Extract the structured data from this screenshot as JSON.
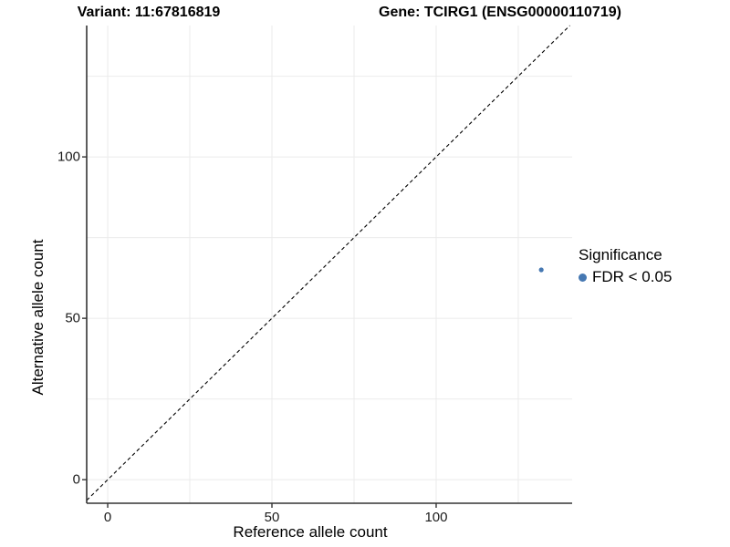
{
  "chart_data": {
    "type": "scatter",
    "title_left": "Variant: 11:67816819",
    "title_right": "Gene: TCIRG1 (ENSG00000110719)",
    "xlabel": "Reference allele count",
    "ylabel": "Alternative allele count",
    "x_ticks": [
      0,
      50,
      100
    ],
    "y_ticks": [
      0,
      50,
      100
    ],
    "grid_values_x": [
      0,
      25,
      50,
      75,
      100,
      125
    ],
    "grid_values_y": [
      0,
      25,
      50,
      75,
      100,
      125
    ],
    "xlim": [
      -6.4,
      141.4
    ],
    "ylim": [
      -7.3,
      140.7
    ],
    "grid": true,
    "identity_line": {
      "slope": 1,
      "intercept": 0,
      "style": "dashed",
      "color": "#000000"
    },
    "series": [
      {
        "name": "FDR < 0.05",
        "color": "#4678b2",
        "points": [
          {
            "x": 132,
            "y": 65
          }
        ]
      }
    ],
    "legend": {
      "title": "Significance",
      "position": "right",
      "items": [
        {
          "label": "FDR < 0.05",
          "color": "#4678b2"
        }
      ]
    },
    "colors": {
      "grid": "#ebebeb",
      "axis_line": "#333333",
      "tick": "#333333",
      "point": "#4678b2"
    }
  }
}
